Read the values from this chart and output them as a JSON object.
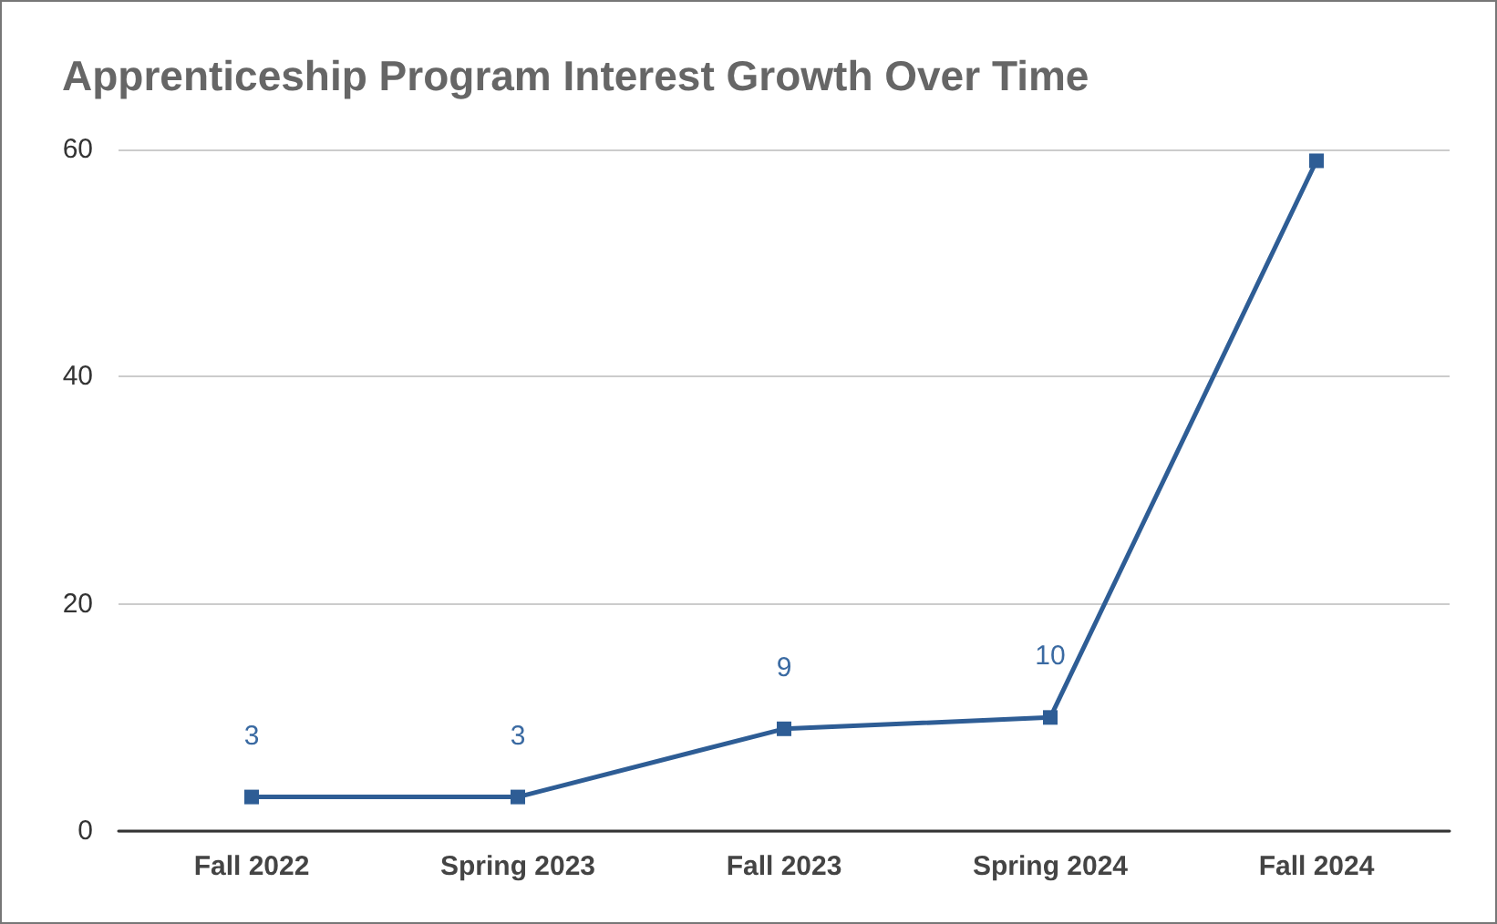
{
  "chart_data": {
    "type": "line",
    "title": "Apprenticeship Program Interest Growth Over Time",
    "categories": [
      "Fall 2022",
      "Spring 2023",
      "Fall 2023",
      "Spring 2024",
      "Fall 2024"
    ],
    "series": [
      {
        "color": "#2e5d95",
        "values": [
          3,
          3,
          9,
          10,
          59
        ],
        "value_labels": [
          "3",
          "3",
          "9",
          "10",
          null
        ]
      }
    ],
    "ylim": [
      0,
      60
    ],
    "yticks": [
      0,
      20,
      40,
      60
    ],
    "grid": "y",
    "marker": "square",
    "line_style": "solid"
  }
}
